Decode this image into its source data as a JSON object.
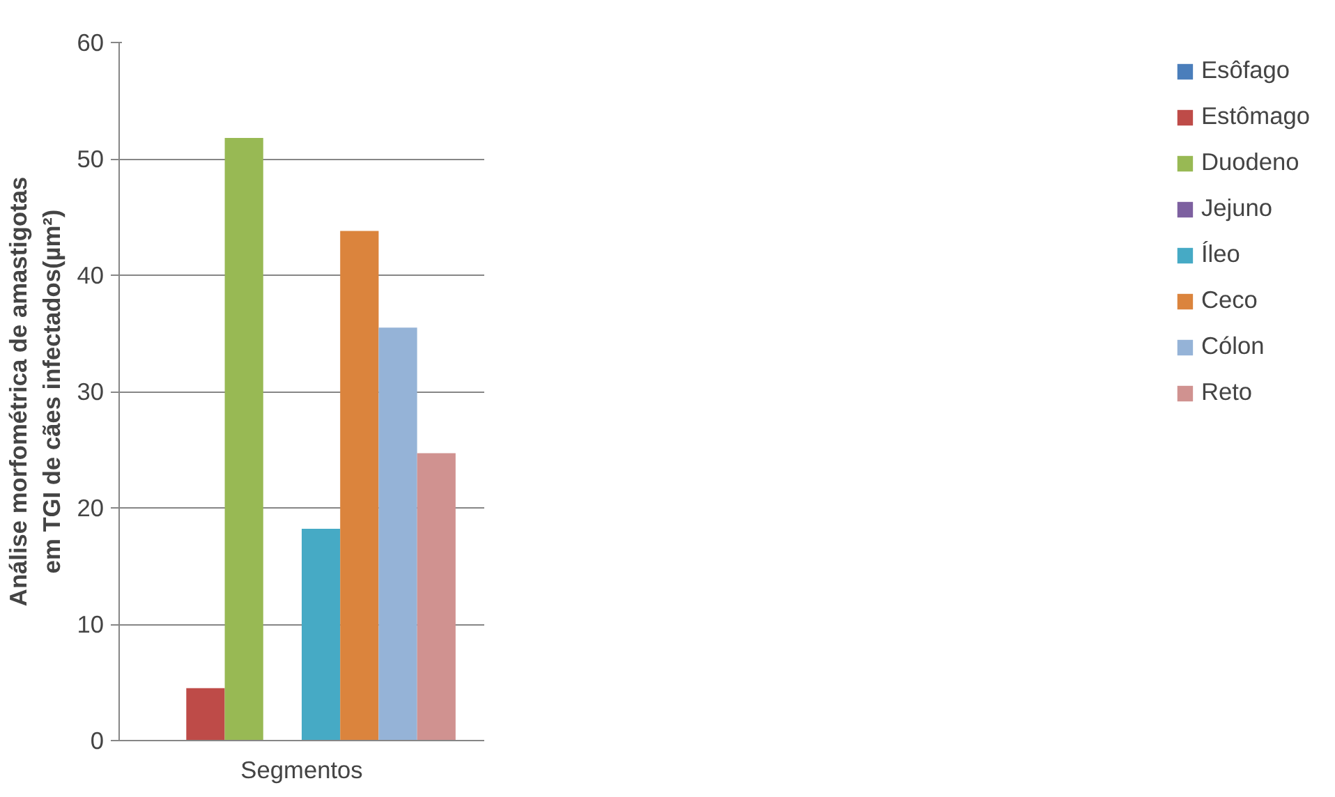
{
  "chart_data": {
    "type": "bar",
    "xlabel": "Segmentos",
    "ylabel": "Análise morfométrica de amastigotas\nem TGI de cães infectados(µm²)",
    "categories": [
      null
    ],
    "series": [
      {
        "name": "Esôfago",
        "color": "#4a7ebb",
        "values": [
          0
        ]
      },
      {
        "name": "Estômago",
        "color": "#be4b48",
        "values": [
          4.5
        ]
      },
      {
        "name": "Duodeno",
        "color": "#98b954",
        "values": [
          51.8
        ]
      },
      {
        "name": "Jejuno",
        "color": "#7d60a0",
        "values": [
          0
        ]
      },
      {
        "name": "Íleo",
        "color": "#46aac5",
        "values": [
          18.2
        ]
      },
      {
        "name": "Ceco",
        "color": "#db843d",
        "values": [
          43.8
        ]
      },
      {
        "name": "Cólon",
        "color": "#95b3d7",
        "values": [
          35.5
        ]
      },
      {
        "name": "Reto",
        "color": "#d09290",
        "values": [
          24.7
        ]
      }
    ],
    "ylim": [
      0,
      60
    ],
    "yticks": [
      0,
      10,
      20,
      30,
      40,
      50,
      60
    ],
    "grid": "y",
    "legend": "right",
    "tick_labels": "y"
  }
}
